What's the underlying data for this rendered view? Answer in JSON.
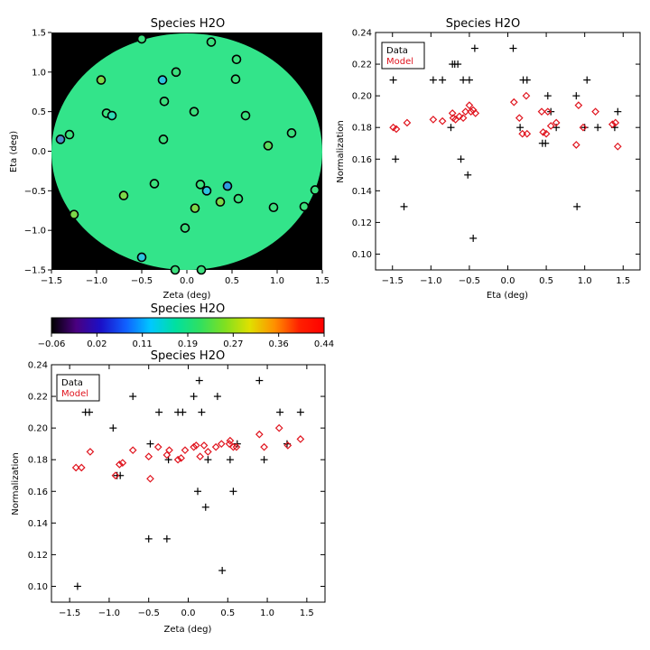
{
  "colors": {
    "data": "#000000",
    "model": "#e0141e",
    "frame": "#000000"
  },
  "chart_data": [
    {
      "id": "map",
      "type": "scatter",
      "title": "Species H2O",
      "xlabel": "Zeta (deg)",
      "ylabel": "Eta (deg)",
      "xlim": [
        -1.5,
        1.5
      ],
      "ylim": [
        -1.5,
        1.5
      ],
      "xticks": [
        -1.5,
        -1.0,
        -0.5,
        0.0,
        0.5,
        1.0,
        1.5
      ],
      "xtick_labels": [
        "−1.5",
        "−1.0",
        "−0.5",
        "0.0",
        "0.5",
        "1.0",
        "1.5"
      ],
      "yticks": [
        -1.5,
        -1.0,
        -0.5,
        0.0,
        0.5,
        1.0,
        1.5
      ],
      "ytick_labels": [
        "−1.5",
        "−1.0",
        "−0.5",
        "0.0",
        "0.5",
        "1.0",
        "1.5"
      ],
      "background": "circular field of view on black",
      "field_color": "#33e48a",
      "points": [
        {
          "zeta": -0.5,
          "eta": 1.42,
          "color": "#3ce07e"
        },
        {
          "zeta": 0.27,
          "eta": 1.38,
          "color": "#3ce07e"
        },
        {
          "zeta": 0.55,
          "eta": 1.16,
          "color": "#3ce07e"
        },
        {
          "zeta": -0.12,
          "eta": 1.0,
          "color": "#3ce07e"
        },
        {
          "zeta": -0.95,
          "eta": 0.9,
          "color": "#7cd84a"
        },
        {
          "zeta": -0.27,
          "eta": 0.9,
          "color": "#2ec4e0"
        },
        {
          "zeta": 0.54,
          "eta": 0.91,
          "color": "#3ce07e"
        },
        {
          "zeta": -0.25,
          "eta": 0.63,
          "color": "#3ce07e"
        },
        {
          "zeta": -0.89,
          "eta": 0.48,
          "color": "#3ce07e"
        },
        {
          "zeta": -0.83,
          "eta": 0.45,
          "color": "#30dcb8"
        },
        {
          "zeta": 0.08,
          "eta": 0.5,
          "color": "#3ce07e"
        },
        {
          "zeta": 0.65,
          "eta": 0.45,
          "color": "#3ce07e"
        },
        {
          "zeta": -1.3,
          "eta": 0.21,
          "color": "#3ce07e"
        },
        {
          "zeta": -1.4,
          "eta": 0.15,
          "color": "#4a8cc8"
        },
        {
          "zeta": -0.26,
          "eta": 0.15,
          "color": "#3ce07e"
        },
        {
          "zeta": 1.16,
          "eta": 0.23,
          "color": "#3ce07e"
        },
        {
          "zeta": 0.9,
          "eta": 0.07,
          "color": "#5cdc5e"
        },
        {
          "zeta": -0.36,
          "eta": -0.41,
          "color": "#3ce07e"
        },
        {
          "zeta": 0.15,
          "eta": -0.42,
          "color": "#3ce07e"
        },
        {
          "zeta": 0.22,
          "eta": -0.5,
          "color": "#2ec4e0"
        },
        {
          "zeta": 0.45,
          "eta": -0.44,
          "color": "#2e9ce0"
        },
        {
          "zeta": -0.7,
          "eta": -0.56,
          "color": "#7cd84a"
        },
        {
          "zeta": 0.37,
          "eta": -0.64,
          "color": "#7cd84a"
        },
        {
          "zeta": 0.57,
          "eta": -0.6,
          "color": "#3ce07e"
        },
        {
          "zeta": 0.09,
          "eta": -0.72,
          "color": "#7cd84a"
        },
        {
          "zeta": 0.96,
          "eta": -0.71,
          "color": "#3ce07e"
        },
        {
          "zeta": 1.3,
          "eta": -0.7,
          "color": "#3ce07e"
        },
        {
          "zeta": 1.42,
          "eta": -0.49,
          "color": "#3ce07e"
        },
        {
          "zeta": -1.25,
          "eta": -0.8,
          "color": "#7cd84a"
        },
        {
          "zeta": -0.02,
          "eta": -0.97,
          "color": "#3ce07e"
        },
        {
          "zeta": -0.5,
          "eta": -1.34,
          "color": "#2ec4e0"
        },
        {
          "zeta": -0.13,
          "eta": -1.5,
          "color": "#3ce07e"
        },
        {
          "zeta": 0.16,
          "eta": -1.5,
          "color": "#3ce07e"
        }
      ]
    },
    {
      "id": "colorbar",
      "type": "heatmap",
      "title": "Species H2O",
      "tick_labels": [
        "−0.06",
        "0.02",
        "0.11",
        "0.19",
        "0.27",
        "0.36",
        "0.44"
      ],
      "range": [
        -0.06,
        0.44
      ],
      "colormap": [
        "#000000",
        "#4a0080",
        "#1a10c8",
        "#1060ff",
        "#00c8ff",
        "#00e0a0",
        "#30e060",
        "#80e020",
        "#e0e000",
        "#ff9000",
        "#ff2000",
        "#ff0000"
      ]
    },
    {
      "id": "eta_norm",
      "type": "scatter",
      "title": "Species H2O",
      "xlabel": "Eta (deg)",
      "ylabel": "Normalization",
      "xlim": [
        -1.72,
        1.72
      ],
      "ylim": [
        0.09,
        0.24
      ],
      "xticks": [
        -1.5,
        -1.0,
        -0.5,
        0.0,
        0.5,
        1.0,
        1.5
      ],
      "xtick_labels": [
        "−1.5",
        "−1.0",
        "−0.5",
        "0.0",
        "0.5",
        "1.0",
        "1.5"
      ],
      "yticks": [
        0.1,
        0.12,
        0.14,
        0.16,
        0.18,
        0.2,
        0.22,
        0.24
      ],
      "ytick_labels": [
        "0.10",
        "0.12",
        "0.14",
        "0.16",
        "0.18",
        "0.20",
        "0.22",
        "0.24"
      ],
      "legend": [
        "Data",
        "Model"
      ],
      "legend_placement": "top-left",
      "series": [
        {
          "name": "Data",
          "marker": "plus",
          "x": [
            -1.49,
            -1.46,
            -1.35,
            -0.97,
            -0.85,
            -0.74,
            -0.72,
            -0.69,
            -0.65,
            -0.61,
            -0.58,
            -0.52,
            -0.5,
            -0.45,
            -0.43,
            0.07,
            0.16,
            0.2,
            0.25,
            0.45,
            0.49,
            0.52,
            0.56,
            0.63,
            0.89,
            0.9,
            1.0,
            1.03,
            1.17,
            1.39,
            1.43
          ],
          "y": [
            0.21,
            0.16,
            0.13,
            0.21,
            0.21,
            0.18,
            0.22,
            0.22,
            0.22,
            0.16,
            0.21,
            0.15,
            0.21,
            0.11,
            0.23,
            0.23,
            0.18,
            0.21,
            0.21,
            0.17,
            0.17,
            0.2,
            0.19,
            0.18,
            0.2,
            0.13,
            0.18,
            0.21,
            0.18,
            0.18,
            0.19
          ]
        },
        {
          "name": "Model",
          "marker": "diamond",
          "x": [
            -1.49,
            -1.45,
            -1.31,
            -0.97,
            -0.85,
            -0.72,
            -0.71,
            -0.68,
            -0.63,
            -0.58,
            -0.55,
            -0.5,
            -0.48,
            -0.45,
            -0.42,
            0.08,
            0.15,
            0.19,
            0.24,
            0.25,
            0.44,
            0.46,
            0.5,
            0.52,
            0.56,
            0.63,
            0.89,
            0.92,
            0.98,
            1.14,
            1.36,
            1.4,
            1.43
          ],
          "y": [
            0.18,
            0.179,
            0.183,
            0.185,
            0.184,
            0.189,
            0.186,
            0.185,
            0.187,
            0.186,
            0.19,
            0.194,
            0.19,
            0.191,
            0.189,
            0.196,
            0.186,
            0.176,
            0.2,
            0.176,
            0.19,
            0.177,
            0.176,
            0.19,
            0.181,
            0.183,
            0.169,
            0.194,
            0.18,
            0.19,
            0.182,
            0.183,
            0.168
          ]
        }
      ]
    },
    {
      "id": "zeta_norm",
      "type": "scatter",
      "title": "Species H2O",
      "xlabel": "Zeta (deg)",
      "ylabel": "Normalization",
      "xlim": [
        -1.73,
        1.73
      ],
      "ylim": [
        0.09,
        0.24
      ],
      "xticks": [
        -1.5,
        -1.0,
        -0.5,
        0.0,
        0.5,
        1.0,
        1.5
      ],
      "xtick_labels": [
        "−1.5",
        "−1.0",
        "−0.5",
        "0.0",
        "0.5",
        "1.0",
        "1.5"
      ],
      "yticks": [
        0.1,
        0.12,
        0.14,
        0.16,
        0.18,
        0.2,
        0.22,
        0.24
      ],
      "ytick_labels": [
        "0.10",
        "0.12",
        "0.14",
        "0.16",
        "0.18",
        "0.20",
        "0.22",
        "0.24"
      ],
      "legend": [
        "Data",
        "Model"
      ],
      "legend_placement": "top-left",
      "series": [
        {
          "name": "Data",
          "marker": "plus",
          "x": [
            -1.4,
            -1.3,
            -1.25,
            -0.95,
            -0.9,
            -0.86,
            -0.7,
            -0.5,
            -0.48,
            -0.37,
            -0.27,
            -0.25,
            -0.13,
            -0.07,
            0.07,
            0.12,
            0.14,
            0.17,
            0.22,
            0.25,
            0.37,
            0.43,
            0.53,
            0.57,
            0.62,
            0.9,
            0.96,
            1.16,
            1.25,
            1.42
          ],
          "y": [
            0.1,
            0.21,
            0.21,
            0.2,
            0.17,
            0.17,
            0.22,
            0.13,
            0.19,
            0.21,
            0.13,
            0.18,
            0.21,
            0.21,
            0.22,
            0.16,
            0.23,
            0.21,
            0.15,
            0.18,
            0.22,
            0.11,
            0.18,
            0.16,
            0.19,
            0.23,
            0.18,
            0.21,
            0.19,
            0.21
          ]
        },
        {
          "name": "Model",
          "marker": "diamond",
          "x": [
            -1.42,
            -1.35,
            -1.24,
            -0.92,
            -0.87,
            -0.83,
            -0.7,
            -0.5,
            -0.48,
            -0.38,
            -0.27,
            -0.24,
            -0.13,
            -0.09,
            -0.04,
            0.07,
            0.1,
            0.15,
            0.2,
            0.25,
            0.35,
            0.42,
            0.52,
            0.53,
            0.57,
            0.61,
            0.9,
            0.96,
            1.15,
            1.26,
            1.42
          ],
          "y": [
            0.175,
            0.175,
            0.185,
            0.17,
            0.177,
            0.178,
            0.186,
            0.182,
            0.168,
            0.188,
            0.183,
            0.186,
            0.18,
            0.181,
            0.186,
            0.188,
            0.189,
            0.182,
            0.189,
            0.185,
            0.188,
            0.19,
            0.19,
            0.192,
            0.188,
            0.188,
            0.196,
            0.188,
            0.2,
            0.189,
            0.193
          ]
        }
      ]
    }
  ]
}
